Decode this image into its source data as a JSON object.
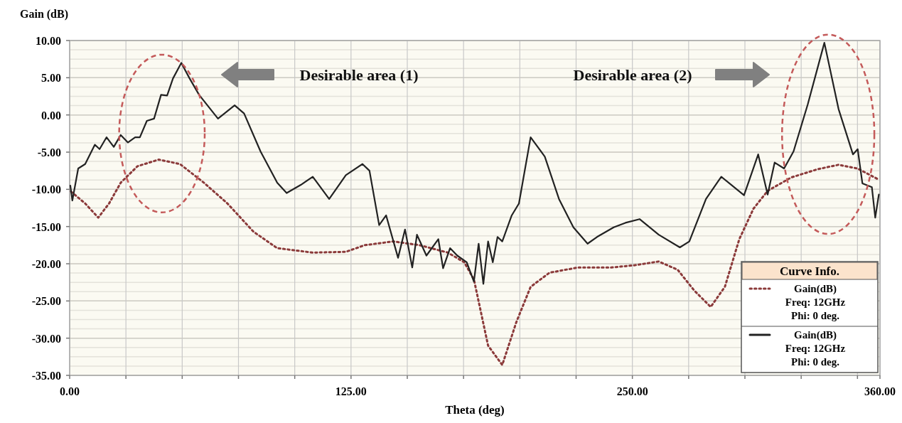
{
  "chart_data": {
    "type": "line",
    "xlabel": "Theta (deg)",
    "ylabel": "Gain (dB)",
    "legend_title": "Curve Info.",
    "legend": "bottom right",
    "grid": true,
    "xlim": [
      0,
      360
    ],
    "ylim": [
      -35,
      10
    ],
    "xticks": [
      {
        "value": 0,
        "label": "0.00"
      },
      {
        "value": 25,
        "label": null
      },
      {
        "value": 50,
        "label": null
      },
      {
        "value": 75,
        "label": null
      },
      {
        "value": 100,
        "label": null
      },
      {
        "value": 125,
        "label": "125.00"
      },
      {
        "value": 150,
        "label": null
      },
      {
        "value": 175,
        "label": null
      },
      {
        "value": 200,
        "label": null
      },
      {
        "value": 225,
        "label": null
      },
      {
        "value": 250,
        "label": "250.00"
      },
      {
        "value": 275,
        "label": null
      },
      {
        "value": 300,
        "label": null
      },
      {
        "value": 325,
        "label": null
      },
      {
        "value": 350,
        "label": null
      },
      {
        "value": 360,
        "label": "360.00"
      }
    ],
    "yticks": [
      {
        "value": 10,
        "label": "10.00"
      },
      {
        "value": 5,
        "label": "5.00"
      },
      {
        "value": 0,
        "label": "0.00"
      },
      {
        "value": -5,
        "label": "-5.00"
      },
      {
        "value": -10,
        "label": "-10.00"
      },
      {
        "value": -15,
        "label": "-15.00"
      },
      {
        "value": -20,
        "label": "-20.00"
      },
      {
        "value": -25,
        "label": "-25.00"
      },
      {
        "value": -30,
        "label": "-30.00"
      },
      {
        "value": -35,
        "label": "-35.00"
      }
    ],
    "annotations": [
      "Desirable area (1)",
      "Desirable area (2)"
    ],
    "series": [
      {
        "name": "Gain(dB)\nFreq: 12GHz\nPhi: 0 deg.",
        "color": "#8b3a3a",
        "line_style": "dotted",
        "x": [
          0.6,
          6.9,
          12.7,
          17.5,
          22.7,
          30.1,
          39.6,
          49,
          59.6,
          70.1,
          81.7,
          92.2,
          108,
          122.7,
          131.1,
          143.8,
          155.4,
          168,
          175.3,
          179.6,
          185.9,
          192.2,
          198.5,
          204.8,
          213.2,
          225.9,
          240.6,
          251.1,
          261.7,
          270.1,
          277.5,
          284.8,
          291.1,
          297.5,
          303.8,
          310.1,
          320.6,
          332.2,
          341.6,
          350.1,
          359.5
        ],
        "values": [
          -10.3,
          -11.9,
          -13.8,
          -11.9,
          -9.1,
          -6.9,
          -6.0,
          -6.6,
          -9.1,
          -11.9,
          -15.7,
          -17.9,
          -18.5,
          -18.4,
          -17.5,
          -17.0,
          -17.5,
          -18.5,
          -19.8,
          -22.1,
          -31.0,
          -33.6,
          -27.8,
          -23.1,
          -21.2,
          -20.5,
          -20.5,
          -20.2,
          -19.7,
          -20.8,
          -23.6,
          -25.8,
          -23.1,
          -16.7,
          -12.6,
          -10.2,
          -8.4,
          -7.3,
          -6.7,
          -7.2,
          -8.7
        ]
      },
      {
        "name": "Gain(dB)\nFreq: 12GHz\nPhi: 0 deg.",
        "color": "#222222",
        "line_style": "solid",
        "x": [
          0.3,
          1.2,
          3.8,
          6.9,
          11.2,
          13.3,
          16.4,
          19.6,
          22.7,
          25.9,
          29.1,
          31.2,
          34.3,
          37.5,
          40.6,
          43.3,
          45.9,
          49.6,
          53.3,
          57.5,
          61.7,
          65.9,
          73.3,
          77.5,
          84.8,
          92.2,
          96.4,
          102.7,
          108,
          115.3,
          122.7,
          130.1,
          133.2,
          137.5,
          140.6,
          145.9,
          149,
          152.2,
          154.3,
          158.5,
          163.8,
          165.9,
          169,
          172.2,
          176.4,
          179.6,
          181.7,
          183.8,
          185.9,
          188,
          190.1,
          192.2,
          196.4,
          199.6,
          204.8,
          211.1,
          217.4,
          223.8,
          230.1,
          234.3,
          241.7,
          246.9,
          253.2,
          261.7,
          271.1,
          275.3,
          282.7,
          289.5,
          299.6,
          305.9,
          310.1,
          313.2,
          317.4,
          321.6,
          327.9,
          335.3,
          341.6,
          348,
          350.1,
          352.2,
          356.4,
          357.9,
          359.5
        ],
        "values": [
          -9.5,
          -11.5,
          -7.2,
          -6.6,
          -4.0,
          -4.6,
          -3.0,
          -4.3,
          -2.7,
          -3.7,
          -3.0,
          -3.0,
          -0.8,
          -0.5,
          2.7,
          2.6,
          4.9,
          7.0,
          4.9,
          2.7,
          1.1,
          -0.5,
          1.3,
          0.2,
          -4.9,
          -9.1,
          -10.5,
          -9.4,
          -8.3,
          -11.3,
          -8.1,
          -6.6,
          -7.5,
          -14.8,
          -13.5,
          -19.2,
          -15.4,
          -20.5,
          -16.1,
          -18.9,
          -16.7,
          -20.6,
          -17.9,
          -18.9,
          -19.8,
          -22.4,
          -17.3,
          -22.7,
          -17.0,
          -19.8,
          -16.4,
          -17.0,
          -13.5,
          -11.9,
          -3.0,
          -5.6,
          -11.3,
          -15.1,
          -17.3,
          -16.4,
          -15.1,
          -14.5,
          -14.0,
          -16.1,
          -17.8,
          -17.0,
          -11.3,
          -8.3,
          -10.8,
          -5.3,
          -10.7,
          -6.4,
          -7.2,
          -4.9,
          1.4,
          9.7,
          0.8,
          -5.3,
          -4.6,
          -9.2,
          -9.7,
          -13.8,
          -10.7
        ]
      }
    ]
  }
}
